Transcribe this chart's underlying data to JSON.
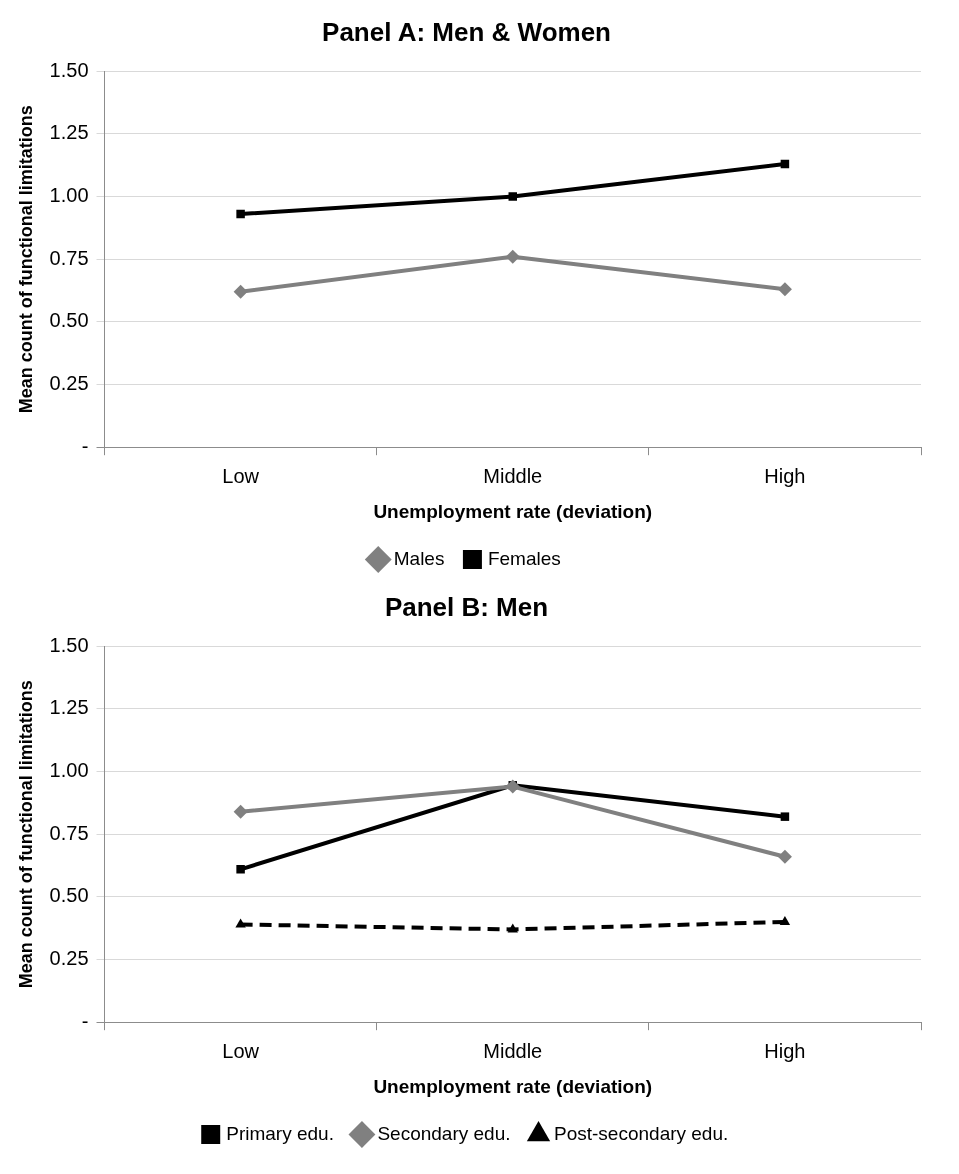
{
  "chart_data": [
    {
      "type": "line",
      "title": "Panel A: Men & Women",
      "xlabel": "Unemployment rate (deviation)",
      "ylabel": "Mean count of functional limitations",
      "categories": [
        "Low",
        "Middle",
        "High"
      ],
      "series": [
        {
          "name": "Males",
          "color": "#808080",
          "marker": "diamond",
          "line_style": "solid",
          "values": [
            0.62,
            0.76,
            0.63
          ]
        },
        {
          "name": "Females",
          "color": "#000000",
          "marker": "square",
          "line_style": "solid",
          "values": [
            0.93,
            1.0,
            1.13
          ]
        }
      ],
      "ylim": [
        0,
        1.5
      ],
      "yticks": [
        {
          "value": 0,
          "label": "-"
        },
        {
          "value": 0.25,
          "label": "0.25"
        },
        {
          "value": 0.5,
          "label": "0.50"
        },
        {
          "value": 0.75,
          "label": "0.75"
        },
        {
          "value": 1,
          "label": "1.00"
        },
        {
          "value": 1.25,
          "label": "1.25"
        },
        {
          "value": 1.5,
          "label": "1.50"
        }
      ],
      "grid": "y",
      "legend": "bottom"
    },
    {
      "type": "line",
      "title": "Panel B: Men",
      "xlabel": "Unemployment rate (deviation)",
      "ylabel": "Mean count of functional limitations",
      "categories": [
        "Low",
        "Middle",
        "High"
      ],
      "series": [
        {
          "name": "Primary edu.",
          "color": "#000000",
          "marker": "square",
          "line_style": "solid",
          "values": [
            0.61,
            0.945,
            0.82
          ]
        },
        {
          "name": "Secondary edu.",
          "color": "#808080",
          "marker": "diamond",
          "line_style": "solid",
          "values": [
            0.84,
            0.94,
            0.66
          ]
        },
        {
          "name": "Post-secondary edu.",
          "color": "#000000",
          "marker": "triangle",
          "line_style": "dashed",
          "values": [
            0.39,
            0.37,
            0.4
          ]
        }
      ],
      "ylim": [
        0,
        1.5
      ],
      "yticks": [
        {
          "value": 0,
          "label": "-"
        },
        {
          "value": 0.25,
          "label": "0.25"
        },
        {
          "value": 0.5,
          "label": "0.50"
        },
        {
          "value": 0.75,
          "label": "0.75"
        },
        {
          "value": 1,
          "label": "1.00"
        },
        {
          "value": 1.25,
          "label": "1.25"
        },
        {
          "value": 1.5,
          "label": "1.50"
        }
      ],
      "grid": "y",
      "legend": "bottom"
    }
  ]
}
